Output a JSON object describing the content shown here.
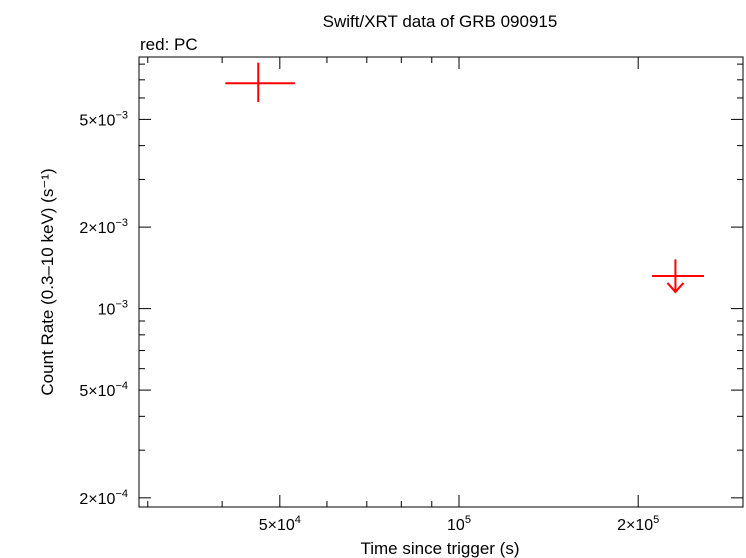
{
  "chart_data": {
    "type": "scatter",
    "title": "Swift/XRT data of GRB 090915",
    "subtitle": "red: PC",
    "xlabel": "Time since trigger (s)",
    "ylabel": "Count Rate (0.3–10 keV) (s⁻¹)",
    "x_scale": "log",
    "y_scale": "log",
    "xlim": [
      29000,
      300000
    ],
    "ylim": [
      0.000185,
      0.0085
    ],
    "x_ticks": [
      {
        "value": 50000,
        "mantissa": "5×10",
        "exp": "4"
      },
      {
        "value": 100000,
        "mantissa": "10",
        "exp": "5"
      },
      {
        "value": 200000,
        "mantissa": "2×10",
        "exp": "5"
      }
    ],
    "y_ticks": [
      {
        "value": 0.0002,
        "mantissa": "2×10",
        "exp": "−4"
      },
      {
        "value": 0.0005,
        "mantissa": "5×10",
        "exp": "−4"
      },
      {
        "value": 0.001,
        "mantissa": "10",
        "exp": "−3"
      },
      {
        "value": 0.002,
        "mantissa": "2×10",
        "exp": "−3"
      },
      {
        "value": 0.005,
        "mantissa": "5×10",
        "exp": "−3"
      }
    ],
    "series": [
      {
        "color": "#ff0000",
        "points": [
          {
            "x": 46000,
            "y": 0.0068,
            "x_lo": 40500,
            "x_hi": 53000,
            "y_lo": 0.0058,
            "y_hi": 0.0081,
            "upper_limit": false
          },
          {
            "x": 231000,
            "y": 0.00132,
            "x_lo": 211000,
            "x_hi": 258000,
            "y_lo": null,
            "y_hi": 0.00152,
            "upper_limit": true
          }
        ]
      }
    ]
  }
}
